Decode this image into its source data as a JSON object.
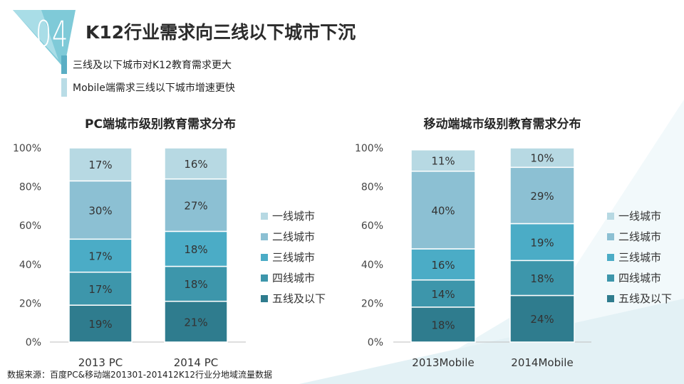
{
  "header": {
    "badge": "04",
    "title": "K12行业需求向三线以下城市下沉",
    "bullets": [
      {
        "text": "三线及以下城市对K12教育需求更大",
        "color": "#5aaec4"
      },
      {
        "text": "Mobile端需求三线以下城市增速更快",
        "color": "#b9dce6"
      }
    ]
  },
  "footer": {
    "source": "数据来源：百度PC&移动端201301-201412K12行业分地域流量数据"
  },
  "colors": {
    "tier1": "#b7d9e3",
    "tier2": "#8cc0d3",
    "tier3": "#4bacc6",
    "tier4": "#3d96ab",
    "tier5": "#2f7c8e",
    "accent_triangle": "#7fcad8"
  },
  "chart_data": [
    {
      "type": "bar",
      "stacked": true,
      "title": "PC端城市级别教育需求分布",
      "categories": [
        "2013 PC",
        "2014 PC"
      ],
      "y_ticks": [
        "0%",
        "20%",
        "40%",
        "60%",
        "80%",
        "100%"
      ],
      "ylim": [
        0,
        100
      ],
      "legend_position": "right",
      "series": [
        {
          "name": "五线及以下",
          "values": [
            19,
            21
          ],
          "labels": [
            "19%",
            "21%"
          ],
          "color": "#2f7c8e"
        },
        {
          "name": "四线城市",
          "values": [
            17,
            18
          ],
          "labels": [
            "17%",
            "18%"
          ],
          "color": "#3d96ab"
        },
        {
          "name": "三线城市",
          "values": [
            17,
            18
          ],
          "labels": [
            "17%",
            "18%"
          ],
          "color": "#4bacc6"
        },
        {
          "name": "二线城市",
          "values": [
            30,
            27
          ],
          "labels": [
            "30%",
            "27%"
          ],
          "color": "#8cc0d3"
        },
        {
          "name": "一线城市",
          "values": [
            17,
            16
          ],
          "labels": [
            "17%",
            "16%"
          ],
          "color": "#b7d9e3"
        }
      ]
    },
    {
      "type": "bar",
      "stacked": true,
      "title": "移动端城市级别教育需求分布",
      "categories": [
        "2013Mobile",
        "2014Mobile"
      ],
      "y_ticks": [
        "0%",
        "20%",
        "40%",
        "60%",
        "80%",
        "100%"
      ],
      "ylim": [
        0,
        100
      ],
      "legend_position": "right",
      "series": [
        {
          "name": "五线及以下",
          "values": [
            18,
            24
          ],
          "labels": [
            "18%",
            "24%"
          ],
          "color": "#2f7c8e"
        },
        {
          "name": "四线城市",
          "values": [
            14,
            18
          ],
          "labels": [
            "14%",
            "18%"
          ],
          "color": "#3d96ab"
        },
        {
          "name": "三线城市",
          "values": [
            16,
            19
          ],
          "labels": [
            "16%",
            "19%"
          ],
          "color": "#4bacc6"
        },
        {
          "name": "二线城市",
          "values": [
            40,
            29
          ],
          "labels": [
            "40%",
            "29%"
          ],
          "color": "#8cc0d3"
        },
        {
          "name": "一线城市",
          "values": [
            11,
            10
          ],
          "labels": [
            "11%",
            "10%"
          ],
          "color": "#b7d9e3"
        }
      ]
    }
  ]
}
